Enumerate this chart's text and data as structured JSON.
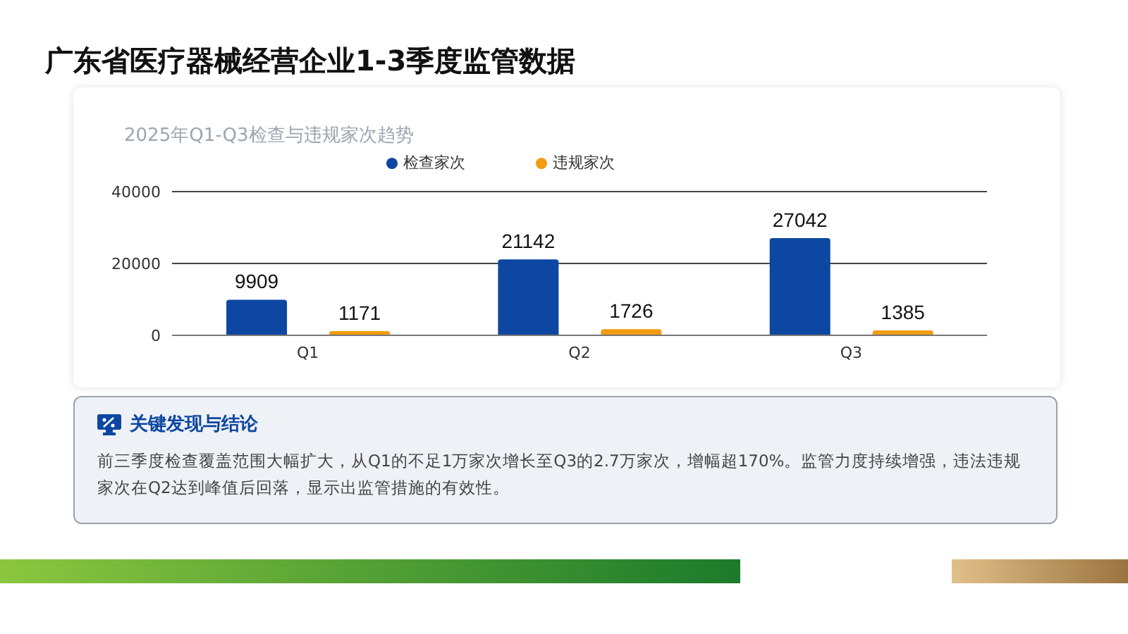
{
  "chart_data": {
    "type": "bar",
    "title": "广东省医疗器械经营企业1-3季度监管数据",
    "subtitle": "2025年Q1-Q3检查与违规家次趋势",
    "categories": [
      "Q1",
      "Q2",
      "Q3"
    ],
    "series": [
      {
        "name": "检查家次",
        "color": "#0d47a1",
        "values": [
          9909,
          21142,
          27042
        ]
      },
      {
        "name": "违规家次",
        "color": "#f39c12",
        "values": [
          1171,
          1726,
          1385
        ]
      }
    ],
    "ylim": [
      0,
      40000
    ],
    "yticks": [
      0,
      20000,
      40000
    ],
    "grid": "y",
    "legend": "top",
    "data_labels": true,
    "annotations": [
      "关键发现与结论",
      "前三季度检查覆盖范围大幅扩大，从Q1的不足1万家次增长至Q3的2.7万家次，增幅超170%。监管力度持续增强，违法违规家次在Q2达到峰值后回落，显示出监管措施的有效性。"
    ]
  }
}
